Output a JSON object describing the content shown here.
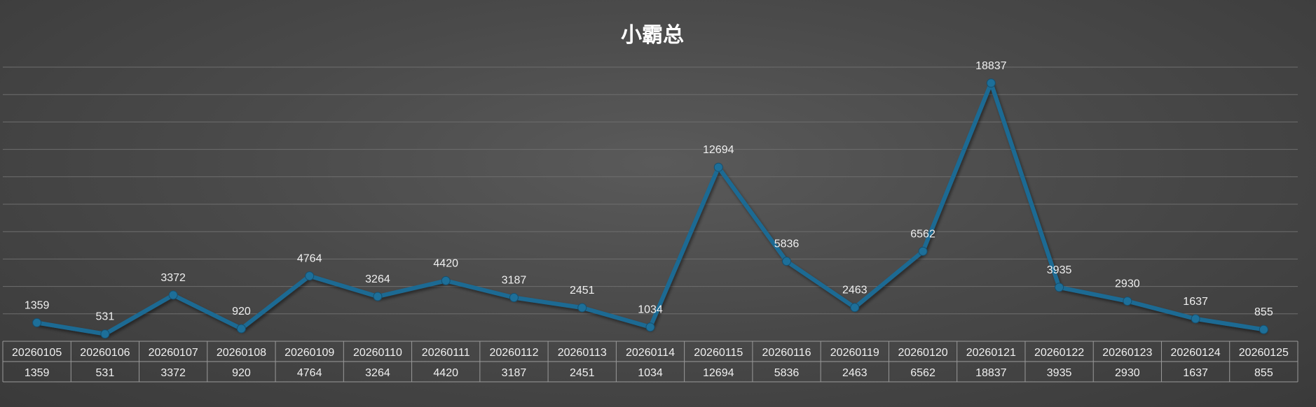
{
  "chart_data": {
    "type": "line",
    "title": "小霸总",
    "categories": [
      "20260105",
      "20260106",
      "20260107",
      "20260108",
      "20260109",
      "20260110",
      "20260111",
      "20260112",
      "20260113",
      "20260114",
      "20260115",
      "20260116",
      "20260119",
      "20260120",
      "20260121",
      "20260122",
      "20260123",
      "20260124",
      "20260125"
    ],
    "series": [
      {
        "values": [
          1359,
          531,
          3372,
          920,
          4764,
          3264,
          4420,
          3187,
          2451,
          1034,
          12694,
          5836,
          2463,
          6562,
          18837,
          3935,
          2930,
          1637,
          855
        ]
      }
    ],
    "ylim": [
      0,
      20000
    ],
    "grid": true,
    "data_labels": true,
    "data_table": true,
    "legend": "none",
    "colors": {
      "line": "#1b6a93",
      "marker": "#1d6f99"
    }
  }
}
